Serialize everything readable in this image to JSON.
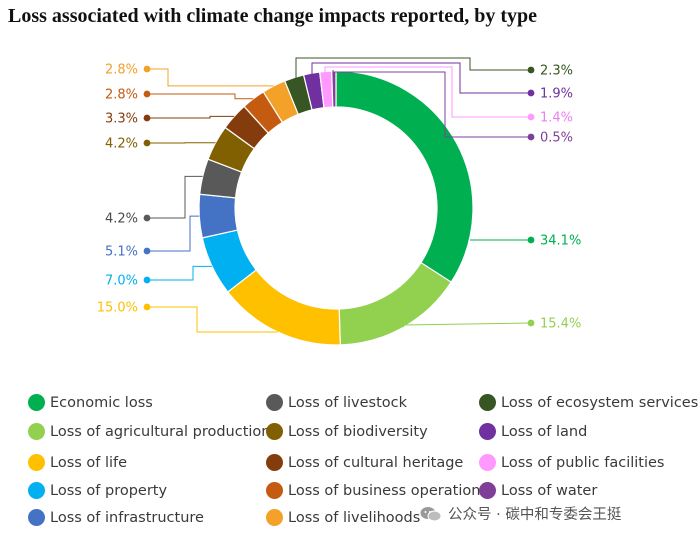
{
  "chart_data": {
    "type": "donut",
    "title": "Loss associated with climate change impacts reported, by type",
    "unit": "%",
    "categories": [
      "Economic loss",
      "Loss of agricultural production",
      "Loss of life",
      "Loss of property",
      "Loss of infrastructure",
      "Loss of livestock",
      "Loss of biodiversity",
      "Loss of cultural heritage",
      "Loss of business operations",
      "Loss of livelihoods",
      "Loss of ecosystem services",
      "Loss of land",
      "Loss of public facilities",
      "Loss of water"
    ],
    "values": [
      34.1,
      15.4,
      15.0,
      7.0,
      5.1,
      4.2,
      4.2,
      3.3,
      2.8,
      2.8,
      2.3,
      1.9,
      1.4,
      0.5
    ],
    "labels": [
      "34.1%",
      "15.4%",
      "15.0%",
      "7.0%",
      "5.1%",
      "4.2%",
      "4.2%",
      "3.3%",
      "2.8%",
      "2.8%",
      "2.3%",
      "1.9%",
      "1.4%",
      "0.5%"
    ],
    "colors": [
      "#00b050",
      "#92d050",
      "#ffc000",
      "#00b0f0",
      "#4472c4",
      "#595959",
      "#806000",
      "#843c0c",
      "#c55a11",
      "#f4a12a",
      "#375623",
      "#7030a0",
      "#ff99ff",
      "#7f3f98"
    ],
    "legend": "bottom"
  },
  "watermark": {
    "text": "公众号 · 碳中和专委会王挺",
    "icon": "wechat-icon"
  }
}
